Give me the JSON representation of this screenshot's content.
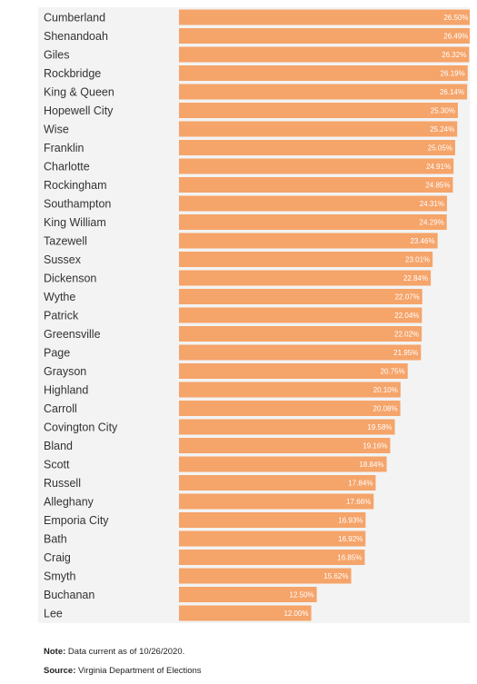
{
  "chart_data": {
    "type": "bar",
    "orientation": "horizontal",
    "categories": [
      "Cumberland",
      "Shenandoah",
      "Giles",
      "Rockbridge",
      "King & Queen",
      "Hopewell City",
      "Wise",
      "Franklin",
      "Charlotte",
      "Rockingham",
      "Southampton",
      "King William",
      "Tazewell",
      "Sussex",
      "Dickenson",
      "Wythe",
      "Patrick",
      "Greensville",
      "Page",
      "Grayson",
      "Highland",
      "Carroll",
      "Covington City",
      "Bland",
      "Scott",
      "Russell",
      "Alleghany",
      "Emporia City",
      "Bath",
      "Craig",
      "Smyth",
      "Buchanan",
      "Lee"
    ],
    "values": [
      26.5,
      26.49,
      26.32,
      26.19,
      26.14,
      25.3,
      25.24,
      25.05,
      24.91,
      24.85,
      24.31,
      24.29,
      23.46,
      23.01,
      22.84,
      22.07,
      22.04,
      22.02,
      21.95,
      20.75,
      20.1,
      20.08,
      19.58,
      19.16,
      18.84,
      17.84,
      17.66,
      16.93,
      16.92,
      16.85,
      15.62,
      12.5,
      12.0
    ],
    "value_labels": [
      "26.50%",
      "26.49%",
      "26.32%",
      "26.19%",
      "26.14%",
      "25.30%",
      "25.24%",
      "25.05%",
      "24.91%",
      "24.85%",
      "24.31%",
      "24.29%",
      "23.46%",
      "23.01%",
      "22.84%",
      "22.07%",
      "22.04%",
      "22.02%",
      "21.95%",
      "20.75%",
      "20.10%",
      "20.08%",
      "19.58%",
      "19.16%",
      "18.84%",
      "17.84%",
      "17.66%",
      "16.93%",
      "16.92%",
      "16.85%",
      "15.62%",
      "12.50%",
      "12.00%"
    ],
    "unit": "%",
    "xlim": [
      0,
      27.2
    ],
    "bar_color": "#f5a46a",
    "label_color": "#ffffff",
    "grid": false
  },
  "footnotes": {
    "note_label": "Note:",
    "note_text": " Data current as of 10/26/2020.",
    "source_label": "Source:",
    "source_text": " Virginia Department of Elections"
  }
}
